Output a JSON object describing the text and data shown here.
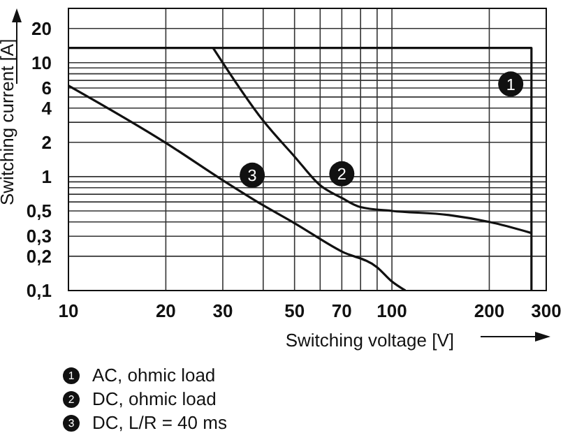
{
  "chart_data": {
    "type": "line",
    "xlabel": "Switching voltage [V]",
    "ylabel": "Switching current [A]",
    "log": "xy",
    "grid": true,
    "legend": "bottom",
    "marker": "none",
    "line_style": "solid",
    "xlim": [
      10,
      300
    ],
    "xticks": [
      10,
      20,
      30,
      {
        "value": 40,
        "label": null
      },
      50,
      {
        "value": 60,
        "label": null
      },
      70,
      {
        "value": 80,
        "label": null
      },
      {
        "value": 90,
        "label": null
      },
      100,
      200,
      300
    ],
    "ylim": [
      0.1,
      30
    ],
    "yticks": [
      {
        "value": 0.1,
        "label": "0,1"
      },
      {
        "value": 0.2,
        "label": "0,2"
      },
      {
        "value": 0.3,
        "label": "0,3"
      },
      {
        "value": 0.4,
        "label": null
      },
      {
        "value": 0.5,
        "label": "0,5"
      },
      {
        "value": 0.6,
        "label": null
      },
      {
        "value": 0.7,
        "label": null
      },
      {
        "value": 0.8,
        "label": null
      },
      {
        "value": 0.9,
        "label": null
      },
      1,
      2,
      {
        "value": 3,
        "label": null
      },
      4,
      {
        "value": 5,
        "label": null
      },
      6,
      {
        "value": 7,
        "label": null
      },
      {
        "value": 8,
        "label": null
      },
      {
        "value": 9,
        "label": null
      },
      10,
      20
    ],
    "series": [
      {
        "name": "AC, ohmic load",
        "color": "#111111",
        "x": [
          10,
          270,
          270
        ],
        "values": [
          13.5,
          13.5,
          0.1
        ]
      },
      {
        "name": "DC, ohmic load",
        "color": "#111111",
        "x": [
          28,
          40,
          50,
          60,
          70,
          80,
          100,
          150,
          200,
          270
        ],
        "values": [
          13.5,
          3.1,
          1.5,
          0.84,
          0.65,
          0.54,
          0.5,
          0.46,
          0.4,
          0.32
        ]
      },
      {
        "name": "DC, L/R = 40 ms",
        "color": "#111111",
        "x": [
          10,
          20,
          30,
          40,
          50,
          70,
          90,
          100,
          110
        ],
        "values": [
          6.3,
          1.98,
          0.93,
          0.56,
          0.39,
          0.22,
          0.16,
          0.12,
          0.1
        ]
      }
    ],
    "annotations": [
      {
        "text": "1",
        "x": 233,
        "y": 6.5
      },
      {
        "text": "2",
        "x": 70,
        "y": 1.06
      },
      {
        "text": "3",
        "x": 37,
        "y": 1.03
      }
    ]
  }
}
